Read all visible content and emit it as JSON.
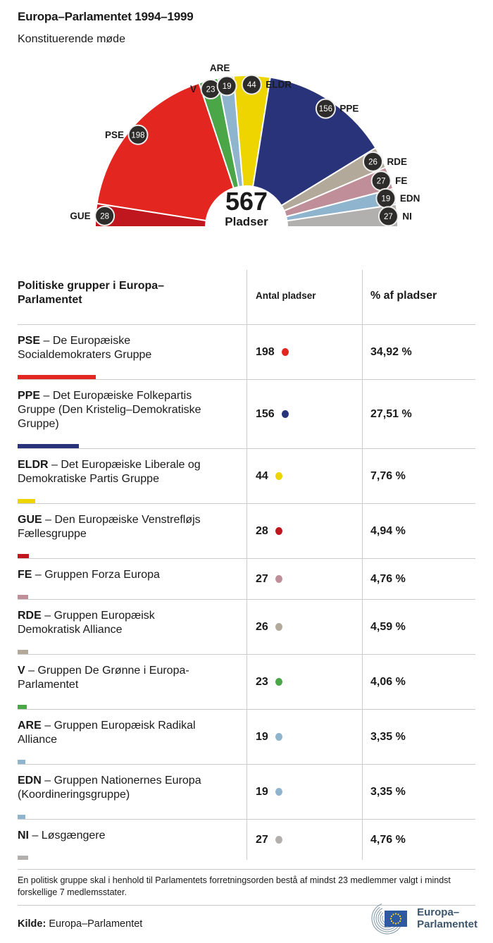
{
  "header": {
    "title": "Europa–Parlamentet 1994–1999",
    "subtitle": "Konstituerende møde"
  },
  "chart_data": {
    "type": "pie",
    "variant": "half-donut-hemicycle",
    "title": "Europa–Parlamentet 1994–1999",
    "center": {
      "value": "567",
      "label": "Pladser"
    },
    "total_seats": 567,
    "order_left_to_right": [
      "GUE",
      "PSE",
      "V",
      "ARE",
      "ELDR",
      "PPE",
      "RDE",
      "FE",
      "EDN",
      "NI"
    ],
    "series": [
      {
        "name": "GUE",
        "seats": 28,
        "color": "#c0161d"
      },
      {
        "name": "PSE",
        "seats": 198,
        "color": "#e32620"
      },
      {
        "name": "V",
        "seats": 23,
        "color": "#4aa647"
      },
      {
        "name": "ARE",
        "seats": 19,
        "color": "#8fb4cd"
      },
      {
        "name": "ELDR",
        "seats": 44,
        "color": "#eed500"
      },
      {
        "name": "PPE",
        "seats": 156,
        "color": "#28337a"
      },
      {
        "name": "RDE",
        "seats": 26,
        "color": "#b3a99b"
      },
      {
        "name": "FE",
        "seats": 27,
        "color": "#bf8e98"
      },
      {
        "name": "EDN",
        "seats": 19,
        "color": "#8fb4cd"
      },
      {
        "name": "NI",
        "seats": 27,
        "color": "#b1b0af"
      }
    ]
  },
  "table": {
    "columns": [
      "Politiske grupper i Europa–Parlamentet",
      "Antal pladser",
      "% af pladser"
    ],
    "rows": [
      {
        "abbr": "PSE",
        "name": "– De Europæiske Socialdemokraters Gruppe",
        "seats": "198",
        "pct": "34,92 %",
        "pct_value": 34.92,
        "color": "#e32620"
      },
      {
        "abbr": "PPE",
        "name": "– Det Europæiske Folkepartis Gruppe (Den Kristelig–Demokratiske Gruppe)",
        "seats": "156",
        "pct": "27,51 %",
        "pct_value": 27.51,
        "color": "#28337a"
      },
      {
        "abbr": "ELDR",
        "name": "– Det Europæiske Liberale og Demokratiske Partis Gruppe",
        "seats": "44",
        "pct": "7,76 %",
        "pct_value": 7.76,
        "color": "#eed500"
      },
      {
        "abbr": "GUE",
        "name": "– Den Europæiske Venstrefløjs Fællesgruppe",
        "seats": "28",
        "pct": "4,94 %",
        "pct_value": 4.94,
        "color": "#c0161d"
      },
      {
        "abbr": "FE",
        "name": "– Gruppen Forza Europa",
        "seats": "27",
        "pct": "4,76 %",
        "pct_value": 4.76,
        "color": "#bf8e98"
      },
      {
        "abbr": "RDE",
        "name": "– Gruppen Europæisk Demokratisk Alliance",
        "seats": "26",
        "pct": "4,59 %",
        "pct_value": 4.59,
        "color": "#b3a99b"
      },
      {
        "abbr": "V",
        "name": "– Gruppen De Grønne i Europa-Parlamentet",
        "seats": "23",
        "pct": "4,06 %",
        "pct_value": 4.06,
        "color": "#4aa647"
      },
      {
        "abbr": "ARE",
        "name": "– Gruppen Europæisk Radikal Alliance",
        "seats": "19",
        "pct": "3,35 %",
        "pct_value": 3.35,
        "color": "#8fb4cd"
      },
      {
        "abbr": "EDN",
        "name": "– Gruppen Nationernes Europa (Koordineringsgruppe)",
        "seats": "19",
        "pct": "3,35 %",
        "pct_value": 3.35,
        "color": "#8fb4cd"
      },
      {
        "abbr": "NI",
        "name": "– Løsgængere",
        "seats": "27",
        "pct": "4,76 %",
        "pct_value": 4.76,
        "color": "#b1b0af"
      }
    ]
  },
  "footer": {
    "note": "En politisk gruppe skal i henhold til Parlamentets forretningsorden bestå af mindst 23 medlemmer valgt i mindst forskellige 7 medlemsstater.",
    "source_label": "Kilde:",
    "source": "Europa–Parlamentet",
    "logo_text_line1": "Europa–",
    "logo_text_line2": "Parlamentet"
  }
}
